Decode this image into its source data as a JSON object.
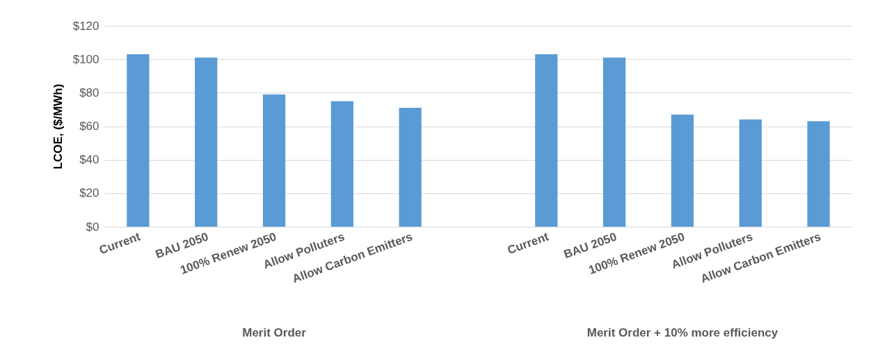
{
  "chart_data": {
    "type": "bar",
    "ylabel": "LCOE, ($/MWh)",
    "categories": [
      "Current",
      "BAU 2050",
      "100% Renew 2050",
      "Allow Polluters",
      "Allow Carbon Emitters",
      null,
      "Current",
      "BAU 2050",
      "100% Renew 2050",
      "Allow Polluters",
      "Allow Carbon Emitters"
    ],
    "values": [
      103,
      101,
      79,
      75,
      71,
      null,
      103,
      101,
      67,
      64,
      63
    ],
    "color": "#5b9bd5",
    "ylim": [
      0,
      120
    ],
    "yticks": [
      {
        "value": 0,
        "label": "$0"
      },
      {
        "value": 20,
        "label": "$20"
      },
      {
        "value": 40,
        "label": "$40"
      },
      {
        "value": 60,
        "label": "$60"
      },
      {
        "value": 80,
        "label": "$80"
      },
      {
        "value": 100,
        "label": "$100"
      },
      {
        "value": 120,
        "label": "$120"
      }
    ],
    "grid": "y",
    "annotations": [
      "Merit Order",
      "Merit Order + 10% more efficiency"
    ]
  }
}
